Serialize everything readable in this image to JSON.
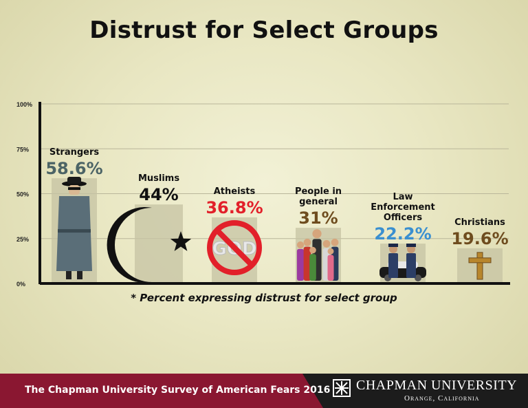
{
  "chart_data": {
    "type": "bar",
    "title": "Distrust for Select Groups",
    "categories": [
      "Strangers",
      "Muslims",
      "Atheists",
      "People in general",
      "Law Enforcement Officers",
      "Christians"
    ],
    "category_label_lines": [
      [
        "Strangers"
      ],
      [
        "Muslims"
      ],
      [
        "Atheists"
      ],
      [
        "People in",
        "general"
      ],
      [
        "Law",
        "Enforcement",
        "Officers"
      ],
      [
        "Christians"
      ]
    ],
    "values": [
      58.6,
      44,
      36.8,
      31,
      22.2,
      19.6
    ],
    "value_labels": [
      "58.6%",
      "44%",
      "36.8%",
      "31%",
      "22.2%",
      "19.6%"
    ],
    "value_label_colors": [
      "#4c6466",
      "#111111",
      "#e2202a",
      "#6e4c1e",
      "#3a8fd0",
      "#6e4c1e"
    ],
    "icons": [
      "spy-figure-icon",
      "crescent-star-icon",
      "no-god-sign-icon",
      "crowd-people-icon",
      "police-car-icon",
      "cross-icon"
    ],
    "yticks": [
      "0%",
      "25%",
      "50%",
      "75%",
      "100%"
    ],
    "ylim": [
      0,
      100
    ],
    "grid": true
  },
  "footnote": "* Percent expressing distrust for select group",
  "footer": {
    "survey_text": "The Chapman University Survey of American Fears 2016",
    "university": "CHAPMAN UNIVERSITY",
    "location": "Orange, California"
  },
  "colors": {
    "band": "#8a1731",
    "dark": "#1c1c1c",
    "bar": "#c6c3a3"
  }
}
